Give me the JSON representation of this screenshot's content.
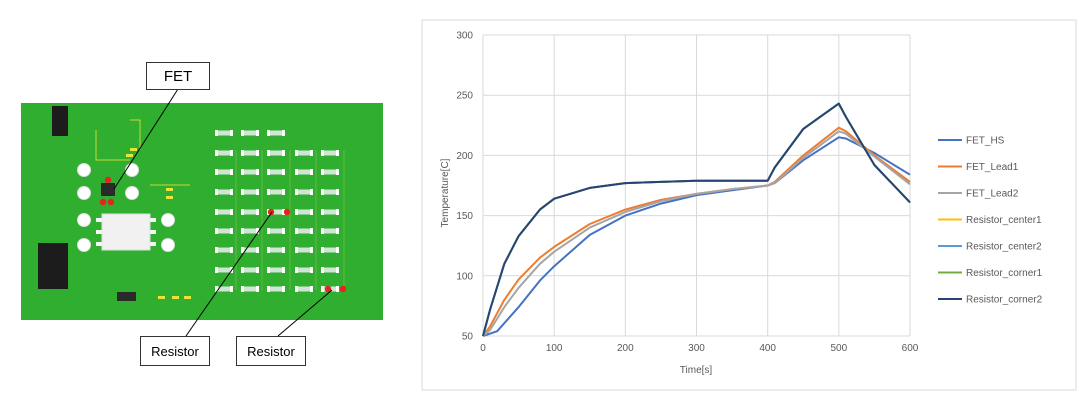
{
  "board": {
    "callouts": {
      "fet": "FET",
      "resistor_center": "Resistor",
      "resistor_corner": "Resistor"
    },
    "colors": {
      "pcb": "#2fae2f",
      "pad": "#cfe6d4",
      "hotspot": "#e8221c",
      "chip": "#2a2a2a",
      "leadframe": "#f1f1f1"
    }
  },
  "chart_data": {
    "type": "line",
    "title": "",
    "xlabel": "Time[s]",
    "ylabel": "Temperature[C]",
    "xlim": [
      0,
      600
    ],
    "ylim": [
      50,
      300
    ],
    "xticks": [
      0,
      100,
      200,
      300,
      400,
      500,
      600
    ],
    "yticks": [
      50,
      100,
      150,
      200,
      250,
      300
    ],
    "grid": true,
    "legend_position": "right",
    "series": [
      {
        "name": "FET_HS",
        "color": "#4472c4",
        "points": [
          [
            0,
            50
          ],
          [
            20,
            54
          ],
          [
            50,
            74
          ],
          [
            80,
            96
          ],
          [
            100,
            108
          ],
          [
            150,
            134
          ],
          [
            200,
            150
          ],
          [
            250,
            160
          ],
          [
            300,
            167
          ],
          [
            350,
            171
          ],
          [
            400,
            175
          ],
          [
            410,
            177
          ],
          [
            450,
            196
          ],
          [
            500,
            215
          ],
          [
            510,
            214
          ],
          [
            550,
            202
          ],
          [
            600,
            184
          ]
        ]
      },
      {
        "name": "FET_Lead1",
        "color": "#ed7d31",
        "points": [
          [
            0,
            50
          ],
          [
            10,
            58
          ],
          [
            30,
            80
          ],
          [
            50,
            97
          ],
          [
            80,
            115
          ],
          [
            100,
            124
          ],
          [
            150,
            143
          ],
          [
            200,
            155
          ],
          [
            250,
            163
          ],
          [
            300,
            168
          ],
          [
            350,
            172
          ],
          [
            400,
            175
          ],
          [
            410,
            178
          ],
          [
            450,
            200
          ],
          [
            500,
            223
          ],
          [
            510,
            220
          ],
          [
            550,
            200
          ],
          [
            600,
            178
          ]
        ]
      },
      {
        "name": "FET_Lead2",
        "color": "#a5a5a5",
        "points": [
          [
            0,
            50
          ],
          [
            10,
            55
          ],
          [
            30,
            74
          ],
          [
            50,
            90
          ],
          [
            80,
            110
          ],
          [
            100,
            120
          ],
          [
            150,
            140
          ],
          [
            200,
            153
          ],
          [
            250,
            162
          ],
          [
            300,
            168
          ],
          [
            350,
            172
          ],
          [
            400,
            175
          ],
          [
            410,
            177
          ],
          [
            450,
            198
          ],
          [
            500,
            220
          ],
          [
            510,
            218
          ],
          [
            550,
            199
          ],
          [
            600,
            176
          ]
        ]
      },
      {
        "name": "Resistor_center1",
        "color": "#ffc000",
        "points": [
          [
            0,
            50
          ],
          [
            10,
            72
          ],
          [
            30,
            110
          ],
          [
            50,
            133
          ],
          [
            80,
            155
          ],
          [
            100,
            164
          ],
          [
            150,
            173
          ],
          [
            200,
            177
          ],
          [
            250,
            178
          ],
          [
            300,
            179
          ],
          [
            350,
            179
          ],
          [
            400,
            179
          ],
          [
            410,
            190
          ],
          [
            450,
            222
          ],
          [
            500,
            243
          ],
          [
            510,
            232
          ],
          [
            550,
            192
          ],
          [
            600,
            161
          ]
        ]
      },
      {
        "name": "Resistor_center2",
        "color": "#5b9bd5",
        "points": [
          [
            0,
            50
          ],
          [
            10,
            72
          ],
          [
            30,
            110
          ],
          [
            50,
            133
          ],
          [
            80,
            155
          ],
          [
            100,
            164
          ],
          [
            150,
            173
          ],
          [
            200,
            177
          ],
          [
            250,
            178
          ],
          [
            300,
            179
          ],
          [
            350,
            179
          ],
          [
            400,
            179
          ],
          [
            410,
            190
          ],
          [
            450,
            222
          ],
          [
            500,
            243
          ],
          [
            510,
            232
          ],
          [
            550,
            192
          ],
          [
            600,
            161
          ]
        ]
      },
      {
        "name": "Resistor_corner1",
        "color": "#70ad47",
        "points": [
          [
            0,
            50
          ],
          [
            10,
            72
          ],
          [
            30,
            110
          ],
          [
            50,
            133
          ],
          [
            80,
            155
          ],
          [
            100,
            164
          ],
          [
            150,
            173
          ],
          [
            200,
            177
          ],
          [
            250,
            178
          ],
          [
            300,
            179
          ],
          [
            350,
            179
          ],
          [
            400,
            179
          ],
          [
            410,
            190
          ],
          [
            450,
            222
          ],
          [
            500,
            243
          ],
          [
            510,
            232
          ],
          [
            550,
            192
          ],
          [
            600,
            161
          ]
        ]
      },
      {
        "name": "Resistor_corner2",
        "color": "#264478",
        "points": [
          [
            0,
            50
          ],
          [
            10,
            72
          ],
          [
            30,
            110
          ],
          [
            50,
            133
          ],
          [
            80,
            155
          ],
          [
            100,
            164
          ],
          [
            150,
            173
          ],
          [
            200,
            177
          ],
          [
            250,
            178
          ],
          [
            300,
            179
          ],
          [
            350,
            179
          ],
          [
            400,
            179
          ],
          [
            410,
            190
          ],
          [
            450,
            222
          ],
          [
            500,
            243
          ],
          [
            510,
            232
          ],
          [
            550,
            192
          ],
          [
            600,
            161
          ]
        ]
      }
    ]
  }
}
